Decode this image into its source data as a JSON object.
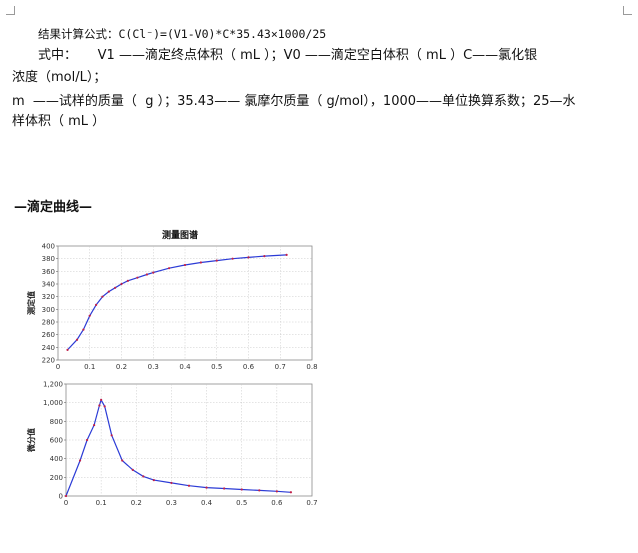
{
  "doc": {
    "formula_line": "结果计算公式：C(Cl⁻)=(V1-V0)*C*35.43×1000/25",
    "where_line": "式中：     V1 ——滴定终点体积（ mL ）；V0 ——滴定空白体积（ mL ）C——氯化银",
    "unit_line": "浓度（mol/L）；",
    "m_line": "m  ——试样的质量（  g ）；35.43—— 氯摩尔质量（ g/mol），1000——单位换算系数；25—水",
    "volume_line": "样体积（ mL ）",
    "section_heading": "—滴定曲线—"
  },
  "chart_data": [
    {
      "type": "line",
      "title": "测量图谱",
      "ylabel": "测定值",
      "xlabel": "",
      "xlim": [
        0,
        0.8
      ],
      "ylim": [
        220,
        400
      ],
      "x_ticks": [
        "0",
        "0.1",
        "0.2",
        "0.3",
        "0.4",
        "0.5",
        "0.6",
        "0.7",
        "0.8"
      ],
      "y_ticks": [
        "220",
        "240",
        "260",
        "280",
        "300",
        "320",
        "340",
        "360",
        "380",
        "400"
      ],
      "grid": true,
      "series": [
        {
          "color": "#2b3bd6",
          "marker_color": "#c0204a",
          "x": [
            0.03,
            0.06,
            0.08,
            0.1,
            0.12,
            0.14,
            0.16,
            0.18,
            0.2,
            0.22,
            0.25,
            0.28,
            0.3,
            0.35,
            0.4,
            0.45,
            0.5,
            0.55,
            0.6,
            0.65,
            0.72
          ],
          "y": [
            236,
            252,
            268,
            290,
            307,
            320,
            328,
            334,
            340,
            345,
            350,
            355,
            358,
            365,
            370,
            374,
            377,
            380,
            382,
            384,
            386
          ]
        }
      ]
    },
    {
      "type": "line",
      "title": "",
      "ylabel": "微分值",
      "xlabel": "",
      "xlim": [
        0,
        0.7
      ],
      "ylim": [
        0,
        1200
      ],
      "x_ticks": [
        "0",
        "0.1",
        "0.2",
        "0.3",
        "0.4",
        "0.5",
        "0.6",
        "0.7"
      ],
      "y_ticks": [
        "0",
        "200",
        "400",
        "600",
        "800",
        "1,000",
        "1,200"
      ],
      "grid": true,
      "series": [
        {
          "color": "#2b3bd6",
          "marker_color": "#c0204a",
          "x": [
            0.0,
            0.04,
            0.06,
            0.08,
            0.095,
            0.1,
            0.11,
            0.13,
            0.16,
            0.19,
            0.22,
            0.25,
            0.3,
            0.35,
            0.4,
            0.45,
            0.5,
            0.55,
            0.6,
            0.64
          ],
          "y": [
            0,
            380,
            600,
            760,
            970,
            1030,
            960,
            650,
            380,
            280,
            210,
            170,
            140,
            110,
            90,
            80,
            70,
            60,
            50,
            40
          ]
        }
      ]
    }
  ]
}
